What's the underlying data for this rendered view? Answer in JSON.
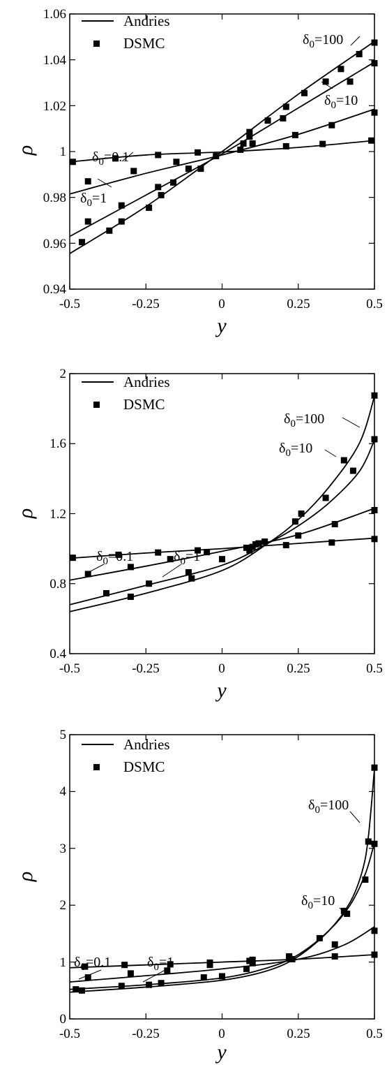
{
  "chart_data": [
    {
      "type": "line",
      "xlabel": "y",
      "ylabel": "ρ",
      "xlim": [
        -0.5,
        0.5
      ],
      "ylim": [
        0.94,
        1.06
      ],
      "x_ticks": [
        "-0.5",
        "-0.25",
        "0",
        "0.25",
        "0.5"
      ],
      "y_ticks": [
        "0.94",
        "0.96",
        "0.98",
        "1",
        "1.02",
        "1.04",
        "1.06"
      ],
      "legend": {
        "position": "top-left",
        "entries": [
          "Andries",
          "DSMC"
        ]
      },
      "series": [
        {
          "label": "δ0=0.1",
          "line": [
            [
              -0.5,
              0.9955
            ],
            [
              -0.25,
              0.9985
            ],
            [
              0,
              0.9998
            ],
            [
              0.25,
              1.0018
            ],
            [
              0.5,
              1.0048
            ]
          ],
          "dsmc": [
            [
              -0.49,
              0.9955
            ],
            [
              -0.35,
              0.997
            ],
            [
              -0.21,
              0.9985
            ],
            [
              -0.08,
              0.9996
            ],
            [
              0.06,
              1.0008
            ],
            [
              0.21,
              1.0023
            ],
            [
              0.33,
              1.0033
            ],
            [
              0.49,
              1.0048
            ]
          ]
        },
        {
          "label": "δ0=1",
          "line": [
            [
              -0.5,
              0.9815
            ],
            [
              -0.25,
              0.9905
            ],
            [
              0,
              0.9985
            ],
            [
              0.25,
              1.0075
            ],
            [
              0.5,
              1.0185
            ]
          ],
          "dsmc": [
            [
              -0.44,
              0.987
            ],
            [
              -0.29,
              0.9915
            ],
            [
              -0.15,
              0.9955
            ],
            [
              -0.02,
              0.998
            ],
            [
              0.1,
              1.0035
            ],
            [
              0.24,
              1.0072
            ],
            [
              0.36,
              1.0115
            ],
            [
              0.5,
              1.017
            ]
          ]
        },
        {
          "label": "δ0=10",
          "line": [
            [
              -0.5,
              0.963
            ],
            [
              -0.25,
              0.981
            ],
            [
              0,
              0.999
            ],
            [
              0.25,
              1.019
            ],
            [
              0.5,
              1.039
            ]
          ],
          "dsmc": [
            [
              -0.44,
              0.9695
            ],
            [
              -0.33,
              0.9765
            ],
            [
              -0.21,
              0.9845
            ],
            [
              -0.11,
              0.9925
            ],
            [
              0.09,
              1.0065
            ],
            [
              0.2,
              1.0145
            ],
            [
              0.42,
              1.0305
            ],
            [
              0.5,
              1.0385
            ]
          ]
        },
        {
          "label": "δ0=100",
          "line": [
            [
              -0.5,
              0.9555
            ],
            [
              -0.25,
              0.976
            ],
            [
              0,
              1.0
            ],
            [
              0.25,
              1.025
            ],
            [
              0.5,
              1.048
            ]
          ],
          "dsmc": [
            [
              -0.46,
              0.9605
            ],
            [
              -0.37,
              0.9655
            ],
            [
              -0.33,
              0.9695
            ],
            [
              -0.24,
              0.9755
            ],
            [
              -0.2,
              0.981
            ],
            [
              -0.16,
              0.9865
            ],
            [
              -0.07,
              0.9925
            ],
            [
              0.07,
              1.0035
            ],
            [
              0.09,
              1.0085
            ],
            [
              0.15,
              1.0135
            ],
            [
              0.21,
              1.0195
            ],
            [
              0.27,
              1.0255
            ],
            [
              0.34,
              1.0305
            ],
            [
              0.39,
              1.036
            ],
            [
              0.45,
              1.0425
            ],
            [
              0.5,
              1.0475
            ]
          ]
        }
      ],
      "annotations": [
        "δ0=0.1",
        "δ0=1",
        "δ0=10",
        "δ0=100"
      ]
    },
    {
      "type": "line",
      "xlabel": "y",
      "ylabel": "ρ",
      "xlim": [
        -0.5,
        0.5
      ],
      "ylim": [
        0.4,
        2.0
      ],
      "x_ticks": [
        "-0.5",
        "-0.25",
        "0",
        "0.25",
        "0.5"
      ],
      "y_ticks": [
        "0.4",
        "0.8",
        "1.2",
        "1.6",
        "2"
      ],
      "legend": {
        "position": "top-left",
        "entries": [
          "Andries",
          "DSMC"
        ]
      },
      "series": [
        {
          "label": "δ0=0.1",
          "line": [
            [
              -0.5,
              0.945
            ],
            [
              -0.25,
              0.975
            ],
            [
              0,
              1.0
            ],
            [
              0.25,
              1.03
            ],
            [
              0.5,
              1.06
            ]
          ],
          "dsmc": [
            [
              -0.49,
              0.948
            ],
            [
              -0.34,
              0.965
            ],
            [
              -0.21,
              0.978
            ],
            [
              -0.05,
              0.98
            ],
            [
              0.1,
              1.01
            ],
            [
              0.21,
              1.02
            ],
            [
              0.36,
              1.035
            ],
            [
              0.5,
              1.055
            ]
          ]
        },
        {
          "label": "δ0=1",
          "line": [
            [
              -0.5,
              0.82
            ],
            [
              -0.25,
              0.9
            ],
            [
              0,
              0.985
            ],
            [
              0.25,
              1.08
            ],
            [
              0.5,
              1.23
            ]
          ],
          "dsmc": [
            [
              -0.44,
              0.855
            ],
            [
              -0.3,
              0.895
            ],
            [
              -0.17,
              0.94
            ],
            [
              -0.08,
              0.99
            ],
            [
              0.08,
              1.005
            ],
            [
              0.14,
              1.04
            ],
            [
              0.25,
              1.075
            ],
            [
              0.37,
              1.14
            ],
            [
              0.5,
              1.22
            ]
          ]
        },
        {
          "label": "δ0=10",
          "line": [
            [
              -0.5,
              0.68
            ],
            [
              -0.25,
              0.79
            ],
            [
              0,
              0.905
            ],
            [
              0.15,
              1.03
            ],
            [
              0.25,
              1.13
            ],
            [
              0.35,
              1.26
            ],
            [
              0.45,
              1.44
            ],
            [
              0.5,
              1.62
            ]
          ],
          "dsmc": [
            [
              -0.38,
              0.745
            ],
            [
              -0.24,
              0.8
            ],
            [
              -0.11,
              0.865
            ],
            [
              0.0,
              0.94
            ],
            [
              0.11,
              1.025
            ],
            [
              0.24,
              1.155
            ],
            [
              0.34,
              1.29
            ],
            [
              0.43,
              1.445
            ],
            [
              0.5,
              1.625
            ]
          ]
        },
        {
          "label": "δ0=100",
          "line": [
            [
              -0.5,
              0.64
            ],
            [
              -0.25,
              0.745
            ],
            [
              0,
              0.875
            ],
            [
              0.15,
              1.03
            ],
            [
              0.25,
              1.165
            ],
            [
              0.35,
              1.35
            ],
            [
              0.45,
              1.6
            ],
            [
              0.5,
              1.87
            ]
          ],
          "dsmc": [
            [
              -0.3,
              0.725
            ],
            [
              -0.1,
              0.83
            ],
            [
              0.09,
              0.99
            ],
            [
              0.12,
              1.03
            ],
            [
              0.26,
              1.2
            ],
            [
              0.4,
              1.505
            ],
            [
              0.5,
              1.875
            ]
          ]
        }
      ],
      "annotations": [
        "δ0=0.1",
        "δ0=1",
        "δ0=10",
        "δ0=100"
      ]
    },
    {
      "type": "line",
      "xlabel": "y",
      "ylabel": "ρ",
      "xlim": [
        -0.5,
        0.5
      ],
      "ylim": [
        0,
        5
      ],
      "x_ticks": [
        "-0.5",
        "-0.25",
        "0",
        "0.25",
        "0.5"
      ],
      "y_ticks": [
        "0",
        "1",
        "2",
        "3",
        "4",
        "5"
      ],
      "legend": {
        "position": "top-left",
        "entries": [
          "Andries",
          "DSMC"
        ]
      },
      "series": [
        {
          "label": "δ0=0.1",
          "line": [
            [
              -0.5,
              0.9
            ],
            [
              -0.25,
              0.95
            ],
            [
              0,
              1.0
            ],
            [
              0.25,
              1.05
            ],
            [
              0.5,
              1.13
            ]
          ],
          "dsmc": [
            [
              -0.45,
              0.92
            ],
            [
              -0.32,
              0.95
            ],
            [
              -0.17,
              0.96
            ],
            [
              -0.04,
              0.99
            ],
            [
              0.1,
              1.04
            ],
            [
              0.22,
              1.08
            ],
            [
              0.37,
              1.1
            ],
            [
              0.5,
              1.13
            ]
          ]
        },
        {
          "label": "δ0=1",
          "line": [
            [
              -0.5,
              0.65
            ],
            [
              -0.25,
              0.76
            ],
            [
              0,
              0.88
            ],
            [
              0.25,
              1.05
            ],
            [
              0.4,
              1.3
            ],
            [
              0.5,
              1.62
            ]
          ],
          "dsmc": [
            [
              -0.44,
              0.73
            ],
            [
              -0.3,
              0.8
            ],
            [
              -0.18,
              0.85
            ],
            [
              -0.04,
              0.95
            ],
            [
              0.09,
              1.02
            ],
            [
              0.22,
              1.1
            ],
            [
              0.37,
              1.31
            ],
            [
              0.5,
              1.55
            ]
          ]
        },
        {
          "label": "δ0=10",
          "line": [
            [
              -0.5,
              0.52
            ],
            [
              -0.25,
              0.6
            ],
            [
              0,
              0.72
            ],
            [
              0.15,
              0.9
            ],
            [
              0.25,
              1.13
            ],
            [
              0.35,
              1.55
            ],
            [
              0.42,
              2.0
            ],
            [
              0.47,
              2.55
            ],
            [
              0.5,
              3.1
            ]
          ],
          "dsmc": [
            [
              -0.48,
              0.52
            ],
            [
              -0.33,
              0.58
            ],
            [
              -0.2,
              0.63
            ],
            [
              -0.06,
              0.73
            ],
            [
              0.1,
              0.98
            ],
            [
              0.23,
              1.05
            ],
            [
              0.32,
              1.42
            ],
            [
              0.41,
              1.85
            ],
            [
              0.47,
              2.45
            ],
            [
              0.5,
              3.08
            ]
          ]
        },
        {
          "label": "δ0=100",
          "line": [
            [
              -0.5,
              0.47
            ],
            [
              -0.25,
              0.56
            ],
            [
              0,
              0.68
            ],
            [
              0.15,
              0.85
            ],
            [
              0.25,
              1.1
            ],
            [
              0.35,
              1.55
            ],
            [
              0.42,
              2.05
            ],
            [
              0.46,
              2.6
            ],
            [
              0.48,
              3.2
            ],
            [
              0.5,
              4.4
            ]
          ],
          "dsmc": [
            [
              -0.46,
              0.5
            ],
            [
              -0.24,
              0.6
            ],
            [
              0.0,
              0.75
            ],
            [
              0.08,
              0.88
            ],
            [
              0.4,
              1.9
            ],
            [
              0.48,
              3.12
            ],
            [
              0.5,
              4.42
            ]
          ]
        }
      ],
      "annotations": [
        "δ0=0.1",
        "δ0=1",
        "δ0=10",
        "δ0=100"
      ]
    }
  ]
}
